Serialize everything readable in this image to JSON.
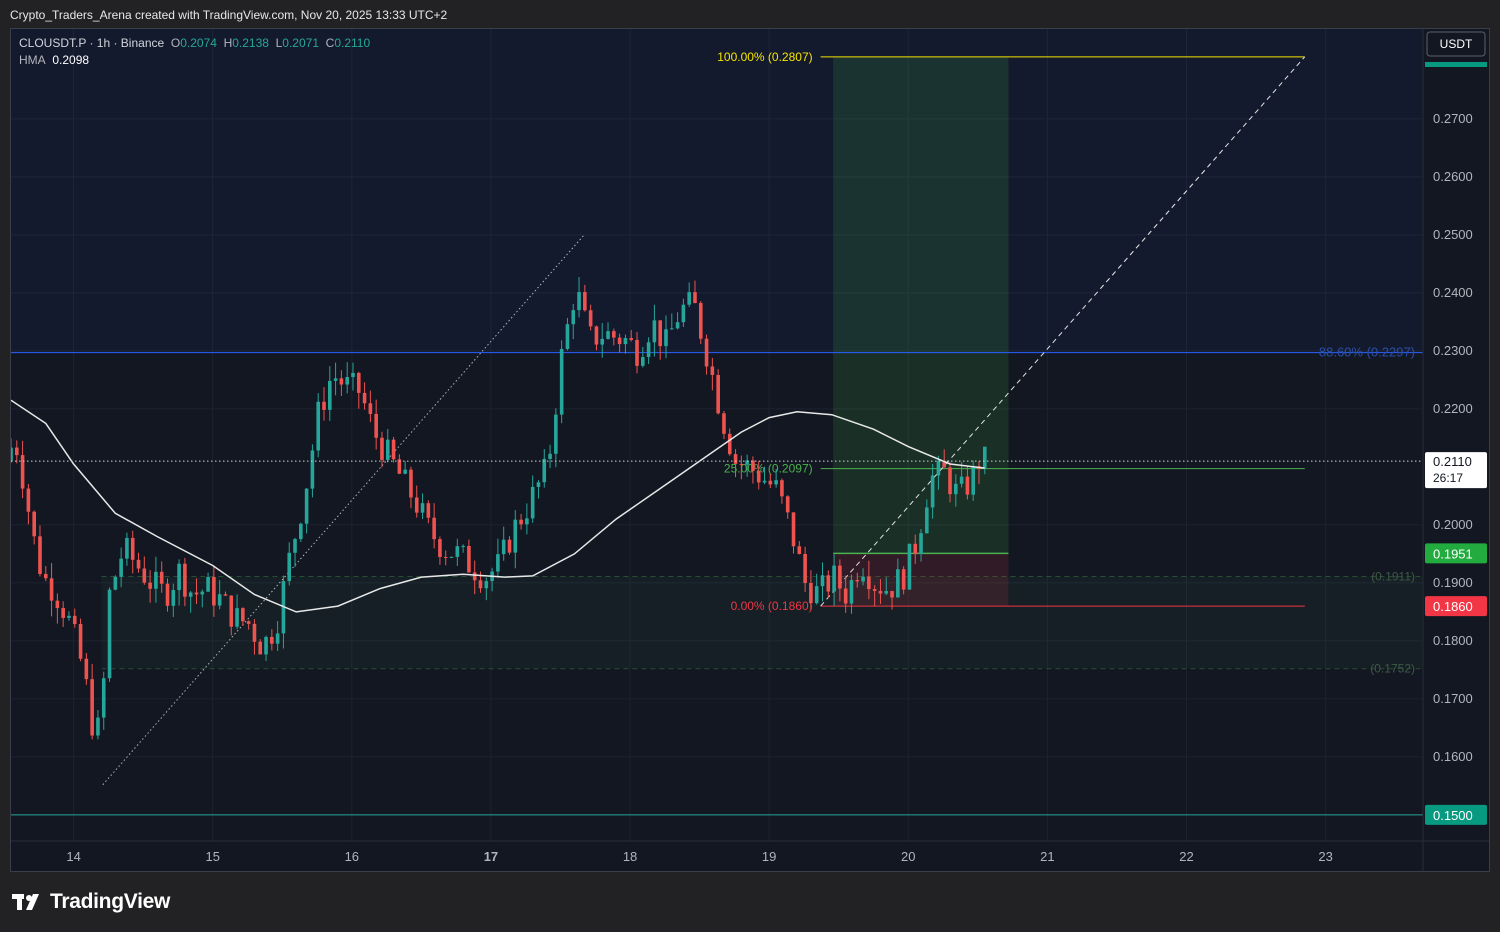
{
  "header": {
    "credit": "Crypto_Traders_Arena created with TradingView.com, Nov 20, 2025 13:33 UTC+2"
  },
  "legend": {
    "symbol": "CLOUSDT.P · 1h · Binance",
    "o_label": "O",
    "o": "0.2074",
    "h_label": "H",
    "h": "0.2138",
    "l_label": "L",
    "l": "0.2071",
    "c_label": "C",
    "c": "0.2110",
    "hma_label": "HMA",
    "hma": "0.2098"
  },
  "footer": {
    "brand": "TradingView"
  },
  "chart_data": {
    "type": "candlestick",
    "currency": "USDT",
    "y_ticks": [
      "0.2700",
      "0.2600",
      "0.2500",
      "0.2400",
      "0.2300",
      "0.2200",
      "0.2000",
      "0.1900",
      "0.1800",
      "0.1700",
      "0.1600"
    ],
    "ylim": [
      0.1455,
      0.2855
    ],
    "x_ticks": [
      {
        "label": "14",
        "day": 14
      },
      {
        "label": "15",
        "day": 15
      },
      {
        "label": "16",
        "day": 16
      },
      {
        "label": "17",
        "day": 17,
        "bold": true
      },
      {
        "label": "18",
        "day": 18
      },
      {
        "label": "19",
        "day": 19
      },
      {
        "label": "20",
        "day": 20
      },
      {
        "label": "21",
        "day": 21
      },
      {
        "label": "22",
        "day": 22
      },
      {
        "label": "23",
        "day": 23
      }
    ],
    "xlim": [
      13.55,
      23.7
    ],
    "price_path": [
      [
        13.55,
        0.211
      ],
      [
        13.62,
        0.215
      ],
      [
        13.68,
        0.208
      ],
      [
        13.75,
        0.198
      ],
      [
        13.82,
        0.191
      ],
      [
        13.9,
        0.189
      ],
      [
        14.0,
        0.184
      ],
      [
        14.08,
        0.178
      ],
      [
        14.15,
        0.17
      ],
      [
        14.2,
        0.162
      ],
      [
        14.25,
        0.17
      ],
      [
        14.3,
        0.188
      ],
      [
        14.4,
        0.196
      ],
      [
        14.5,
        0.193
      ],
      [
        14.6,
        0.19
      ],
      [
        14.7,
        0.188
      ],
      [
        14.8,
        0.192
      ],
      [
        14.9,
        0.188
      ],
      [
        15.0,
        0.189
      ],
      [
        15.1,
        0.187
      ],
      [
        15.2,
        0.184
      ],
      [
        15.3,
        0.183
      ],
      [
        15.4,
        0.179
      ],
      [
        15.5,
        0.183
      ],
      [
        15.6,
        0.195
      ],
      [
        15.7,
        0.205
      ],
      [
        15.8,
        0.219
      ],
      [
        15.9,
        0.226
      ],
      [
        16.0,
        0.224
      ],
      [
        16.1,
        0.223
      ],
      [
        16.2,
        0.216
      ],
      [
        16.3,
        0.212
      ],
      [
        16.4,
        0.208
      ],
      [
        16.5,
        0.204
      ],
      [
        16.6,
        0.199
      ],
      [
        16.7,
        0.196
      ],
      [
        16.8,
        0.195
      ],
      [
        16.9,
        0.193
      ],
      [
        17.0,
        0.191
      ],
      [
        17.1,
        0.193
      ],
      [
        17.2,
        0.199
      ],
      [
        17.3,
        0.203
      ],
      [
        17.45,
        0.21
      ],
      [
        17.55,
        0.229
      ],
      [
        17.65,
        0.241
      ],
      [
        17.75,
        0.232
      ],
      [
        17.85,
        0.233
      ],
      [
        18.0,
        0.232
      ],
      [
        18.1,
        0.23
      ],
      [
        18.2,
        0.235
      ],
      [
        18.3,
        0.231
      ],
      [
        18.4,
        0.237
      ],
      [
        18.5,
        0.238
      ],
      [
        18.6,
        0.229
      ],
      [
        18.7,
        0.219
      ],
      [
        18.8,
        0.211
      ],
      [
        18.9,
        0.21
      ],
      [
        19.0,
        0.208
      ],
      [
        19.1,
        0.206
      ],
      [
        19.2,
        0.199
      ],
      [
        19.3,
        0.19
      ],
      [
        19.4,
        0.188
      ],
      [
        19.5,
        0.191
      ],
      [
        19.6,
        0.188
      ],
      [
        19.7,
        0.194
      ],
      [
        19.8,
        0.19
      ],
      [
        19.9,
        0.189
      ],
      [
        20.0,
        0.191
      ],
      [
        20.1,
        0.197
      ],
      [
        20.2,
        0.208
      ],
      [
        20.3,
        0.209
      ],
      [
        20.4,
        0.205
      ],
      [
        20.5,
        0.208
      ],
      [
        20.55,
        0.211
      ]
    ],
    "hma_path": [
      [
        13.55,
        0.2215
      ],
      [
        13.8,
        0.2175
      ],
      [
        14.0,
        0.2105
      ],
      [
        14.3,
        0.202
      ],
      [
        14.6,
        0.198
      ],
      [
        15.0,
        0.193
      ],
      [
        15.3,
        0.188
      ],
      [
        15.6,
        0.185
      ],
      [
        15.9,
        0.186
      ],
      [
        16.2,
        0.189
      ],
      [
        16.5,
        0.191
      ],
      [
        16.8,
        0.1915
      ],
      [
        17.1,
        0.191
      ],
      [
        17.3,
        0.1912
      ],
      [
        17.6,
        0.195
      ],
      [
        17.9,
        0.201
      ],
      [
        18.2,
        0.206
      ],
      [
        18.5,
        0.211
      ],
      [
        18.8,
        0.216
      ],
      [
        19.0,
        0.2185
      ],
      [
        19.2,
        0.2195
      ],
      [
        19.45,
        0.219
      ],
      [
        19.75,
        0.2165
      ],
      [
        20.0,
        0.2135
      ],
      [
        20.3,
        0.2105
      ],
      [
        20.55,
        0.2098
      ]
    ],
    "fib": {
      "levels": [
        {
          "label": "100.00% (0.2807)",
          "price": 0.2807,
          "color": "#f5e400"
        },
        {
          "label": "25.00% (0.2097)",
          "price": 0.2097,
          "color": "#4caf50"
        },
        {
          "label": "0.00% (0.1860)",
          "price": 0.186,
          "color": "#f23645"
        }
      ],
      "start_day": 19.37,
      "end_day": 22.85
    },
    "position": {
      "start_day": 19.46,
      "end_day": 20.72,
      "entry": 0.1951,
      "target": 0.2807,
      "stop": 0.186
    },
    "levels": [
      {
        "price": 0.2297,
        "label": "88.60% (0.2297)",
        "color": "#2962ff"
      },
      {
        "price": 0.15,
        "label": "",
        "color": "#26a69a"
      }
    ],
    "zone": {
      "top": 0.1911,
      "bottom": 0.1752,
      "top_label": "(0.1911)",
      "bottom_label": "(0.1752)",
      "start_day": 14.2
    },
    "dotted_lines": [
      {
        "from": [
          14.21,
          0.1552
        ],
        "to": [
          17.67,
          0.25
        ]
      },
      {
        "from": [
          19.37,
          0.186
        ],
        "to": [
          22.85,
          0.2807
        ]
      }
    ],
    "price_tags": [
      {
        "price": 0.211,
        "text": "0.2110",
        "sub": "26:17",
        "style": "current"
      },
      {
        "price": 0.1951,
        "text": "0.1951",
        "style": "green"
      },
      {
        "price": 0.186,
        "text": "0.1860",
        "style": "red"
      },
      {
        "price": 0.15,
        "text": "0.1500",
        "style": "teal"
      }
    ]
  }
}
